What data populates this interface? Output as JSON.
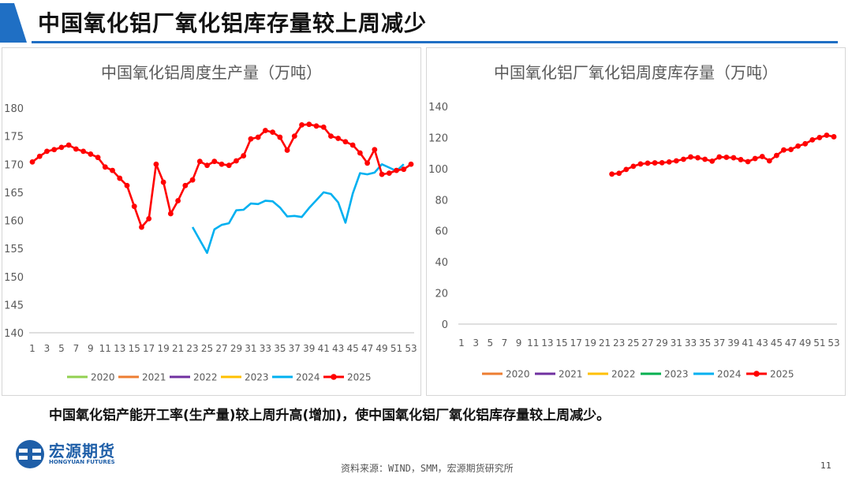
{
  "header": {
    "title": "中国氧化铝厂氧化铝库存量较上周减少"
  },
  "summary": "中国氧化铝产能开工率(生产量)较上周升高(增加)，使中国氧化铝厂氧化铝库存量较上周减少。",
  "footer": {
    "source": "资料来源：WIND，SMM，宏源期货研究所",
    "page_number": "11"
  },
  "logo": {
    "name": "宏源期货",
    "sub": "HONGYUAN FUTURES"
  },
  "colors": {
    "brand_blue": "#1f6fc4",
    "s2020": "#92d050",
    "s2021": "#ed7d31",
    "s2022": "#7030a0",
    "s2023": "#ffc000",
    "s2024": "#00b0f0",
    "s2025": "#ff0000",
    "alt2023": "#00b050"
  },
  "chart_data": [
    {
      "type": "line",
      "title": "中国氧化铝周度生产量（万吨）",
      "xlabel": "",
      "ylabel": "",
      "ylim": [
        140,
        180
      ],
      "yticks": [
        140,
        145,
        150,
        155,
        160,
        165,
        170,
        175,
        180
      ],
      "xticks": [
        "1",
        "3",
        "5",
        "7",
        "9",
        "11",
        "13",
        "15",
        "17",
        "19",
        "21",
        "23",
        "25",
        "27",
        "29",
        "31",
        "33",
        "35",
        "37",
        "39",
        "41",
        "43",
        "45",
        "47",
        "49",
        "51",
        "53"
      ],
      "grid": false,
      "legend_position": "bottom",
      "series": [
        {
          "name": "2020",
          "color": "#92d050",
          "markers": false,
          "x": [],
          "y": []
        },
        {
          "name": "2021",
          "color": "#ed7d31",
          "markers": false,
          "x": [],
          "y": []
        },
        {
          "name": "2022",
          "color": "#7030a0",
          "markers": false,
          "x": [],
          "y": []
        },
        {
          "name": "2023",
          "color": "#ffc000",
          "markers": false,
          "x": [],
          "y": []
        },
        {
          "name": "2024",
          "color": "#00b0f0",
          "markers": false,
          "x": [
            23,
            24,
            25,
            26,
            27,
            28,
            29,
            30,
            31,
            32,
            33,
            34,
            35,
            36,
            37,
            38,
            39,
            40,
            41,
            42,
            43,
            44,
            45,
            46,
            47,
            48,
            49,
            50,
            51,
            52
          ],
          "y": [
            158.8,
            156.5,
            154.2,
            158.4,
            159.2,
            159.5,
            161.8,
            161.9,
            163.0,
            162.9,
            163.5,
            163.4,
            162.3,
            160.7,
            160.8,
            160.6,
            162.2,
            163.6,
            165.0,
            164.7,
            163.2,
            159.6,
            164.8,
            168.4,
            168.2,
            168.5,
            170.0,
            169.4,
            168.8,
            170.0
          ]
        },
        {
          "name": "2025",
          "color": "#ff0000",
          "markers": true,
          "x": [
            1,
            2,
            3,
            4,
            5,
            6,
            7,
            8,
            9,
            10,
            11,
            12,
            13,
            14,
            15,
            16,
            17,
            18,
            19,
            20,
            21,
            22,
            23,
            24,
            25,
            26,
            27,
            28,
            29,
            30,
            31,
            32,
            33,
            34,
            35,
            36,
            37,
            38,
            39,
            40,
            41,
            42,
            43,
            44,
            45,
            46,
            47,
            48,
            49,
            50,
            51,
            52,
            53
          ],
          "y": [
            170.4,
            171.4,
            172.3,
            172.6,
            173.0,
            173.4,
            172.7,
            172.3,
            171.8,
            171.2,
            169.5,
            168.9,
            167.5,
            166.2,
            162.5,
            158.8,
            160.3,
            170.0,
            166.8,
            161.2,
            163.5,
            166.2,
            167.2,
            170.5,
            169.8,
            170.5,
            170.0,
            169.8,
            170.6,
            171.5,
            174.5,
            174.8,
            176.0,
            175.7,
            174.8,
            172.5,
            175.0,
            177.0,
            177.1,
            176.8,
            176.6,
            175.0,
            174.6,
            174.0,
            173.4,
            172.0,
            170.2,
            172.6,
            168.2,
            168.4,
            168.9,
            169.1,
            170.0
          ]
        }
      ]
    },
    {
      "type": "line",
      "title": "中国氧化铝厂氧化铝周度库存量（万吨）",
      "xlabel": "",
      "ylabel": "",
      "ylim": [
        0,
        140
      ],
      "yticks": [
        0,
        20,
        40,
        60,
        80,
        100,
        120,
        140
      ],
      "xticks": [
        "1",
        "3",
        "5",
        "7",
        "9",
        "11",
        "13",
        "15",
        "17",
        "19",
        "21",
        "23",
        "25",
        "27",
        "29",
        "31",
        "33",
        "35",
        "37",
        "39",
        "41",
        "43",
        "45",
        "47",
        "49",
        "51",
        "53"
      ],
      "grid": false,
      "legend_position": "bottom",
      "series": [
        {
          "name": "2020",
          "color": "#ed7d31",
          "markers": false,
          "x": [],
          "y": []
        },
        {
          "name": "2021",
          "color": "#7030a0",
          "markers": false,
          "x": [],
          "y": []
        },
        {
          "name": "2022",
          "color": "#ffc000",
          "markers": false,
          "x": [],
          "y": []
        },
        {
          "name": "2023",
          "color": "#00b050",
          "markers": false,
          "x": [],
          "y": []
        },
        {
          "name": "2024",
          "color": "#00b0f0",
          "markers": false,
          "x": [],
          "y": []
        },
        {
          "name": "2025",
          "color": "#ff0000",
          "markers": true,
          "x": [
            22,
            23,
            24,
            25,
            26,
            27,
            28,
            29,
            30,
            31,
            32,
            33,
            34,
            35,
            36,
            37,
            38,
            39,
            40,
            41,
            42,
            43,
            44,
            45,
            46,
            47,
            48,
            49,
            50,
            51,
            52,
            53
          ],
          "y": [
            96.5,
            97.0,
            99.5,
            101.5,
            103.0,
            103.5,
            103.7,
            103.8,
            104.3,
            105.0,
            106.0,
            107.5,
            107.0,
            106.0,
            104.8,
            107.5,
            107.3,
            107.0,
            105.8,
            104.5,
            106.5,
            107.8,
            105.0,
            108.5,
            112.0,
            112.3,
            114.5,
            116.0,
            118.5,
            120.0,
            121.5,
            120.5
          ]
        }
      ]
    }
  ]
}
